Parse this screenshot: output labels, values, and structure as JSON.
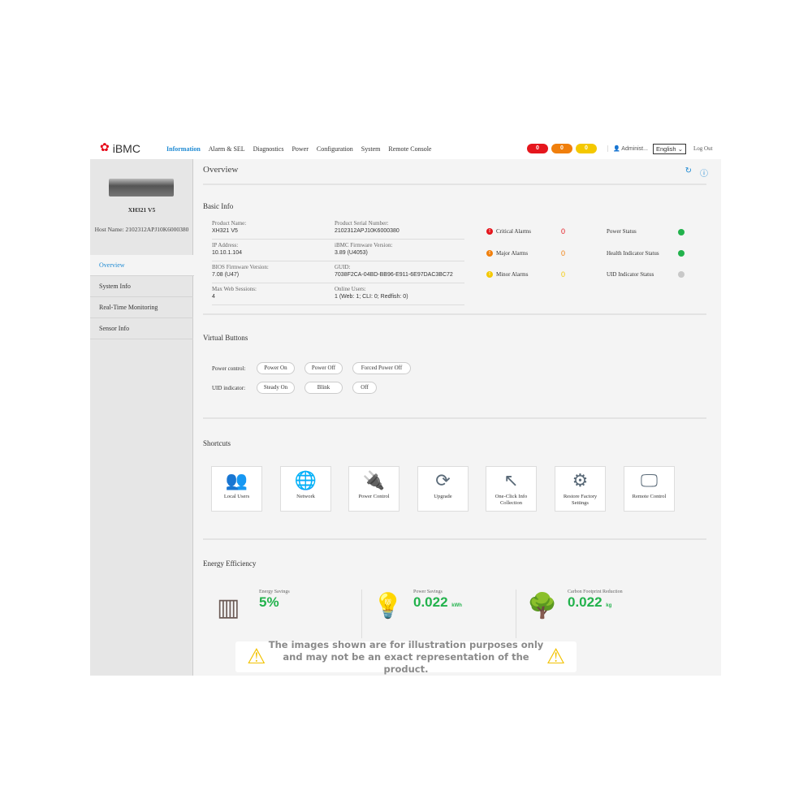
{
  "header": {
    "brand": "iBMC",
    "brand_sub": "HUAWEI",
    "nav": [
      "Information",
      "Alarm & SEL",
      "Diagnostics",
      "Power",
      "Configuration",
      "System",
      "Remote Console"
    ],
    "active": "Information",
    "alarm_badges": [
      {
        "count": "0",
        "color": "#e5161d"
      },
      {
        "count": "0",
        "color": "#f07f0c"
      },
      {
        "count": "0",
        "color": "#f4c800"
      }
    ],
    "user": "Administ...",
    "language": "English",
    "logout": "Log Out"
  },
  "sidebar": {
    "model": "XH321 V5",
    "host": "Host Name: 2102312APJ10K6000380",
    "items": [
      "Overview",
      "System Info",
      "Real-Time Monitoring",
      "Sensor Info"
    ],
    "selected": "Overview"
  },
  "main": {
    "title": "Overview",
    "basic_info": {
      "title": "Basic Info",
      "fields": [
        {
          "label": "Product Name:",
          "value": "XH321 V5"
        },
        {
          "label": "Product Serial Number:",
          "value": "2102312APJ10K6000380"
        },
        {
          "label": "IP Address:",
          "value": "10.10.1.104"
        },
        {
          "label": "iBMC Firmware Version:",
          "value": "3.89 (U4053)"
        },
        {
          "label": "BIOS Firmware Version:",
          "value": "7.08 (U47)"
        },
        {
          "label": "GUID:",
          "value": "7038F2CA-04BD-BB96-E911-6E97DAC3BC72"
        },
        {
          "label": "Max Web Sessions:",
          "value": "4"
        },
        {
          "label": "Online Users:",
          "value": "1 (Web: 1; CLI: 0; Redfish: 0)"
        }
      ],
      "alarms": [
        {
          "label": "Critical Alarms",
          "count": "0",
          "color": "#e5161d"
        },
        {
          "label": "Major Alarms",
          "count": "0",
          "color": "#f07f0c"
        },
        {
          "label": "Minor Alarms",
          "count": "0",
          "color": "#f4c800"
        }
      ],
      "status": [
        {
          "label": "Power Status",
          "color": "#22b24c"
        },
        {
          "label": "Health Indicator Status",
          "color": "#22b24c"
        },
        {
          "label": "UID Indicator Status",
          "color": "#c8c8c8"
        }
      ]
    },
    "virtual_buttons": {
      "title": "Virtual Buttons",
      "power_label": "Power control:",
      "power": [
        "Power On",
        "Power Off",
        "Forced Power Off"
      ],
      "uid_label": "UID indicator:",
      "uid": [
        "Steady On",
        "Blink",
        "Off"
      ]
    },
    "shortcuts": {
      "title": "Shortcuts",
      "items": [
        {
          "label": "Local Users",
          "icon": "users-icon",
          "glyph": "👥"
        },
        {
          "label": "Network",
          "icon": "globe-icon",
          "glyph": "🌐"
        },
        {
          "label": "Power Control",
          "icon": "plug-icon",
          "glyph": "🔌"
        },
        {
          "label": "Upgrade",
          "icon": "refresh-icon",
          "glyph": "⟳"
        },
        {
          "label": "One-Click Info Collection",
          "icon": "cursor-icon",
          "glyph": "↖"
        },
        {
          "label": "Restore Factory Settings",
          "icon": "gear-icon",
          "glyph": "⚙"
        },
        {
          "label": "Remote Control",
          "icon": "monitor-icon",
          "glyph": "🖵"
        }
      ]
    },
    "energy": {
      "title": "Energy Efficiency",
      "items": [
        {
          "label": "Energy Savings",
          "value": "5%",
          "unit": ""
        },
        {
          "label": "Power Savings",
          "value": "0.022",
          "unit": "kWh"
        },
        {
          "label": "Carbon Footprint Reduction",
          "value": "0.022",
          "unit": "kg"
        }
      ]
    }
  },
  "notice": {
    "line1": "The images shown are for illustration purposes only",
    "line2": "and may not be an exact representation of the product."
  }
}
